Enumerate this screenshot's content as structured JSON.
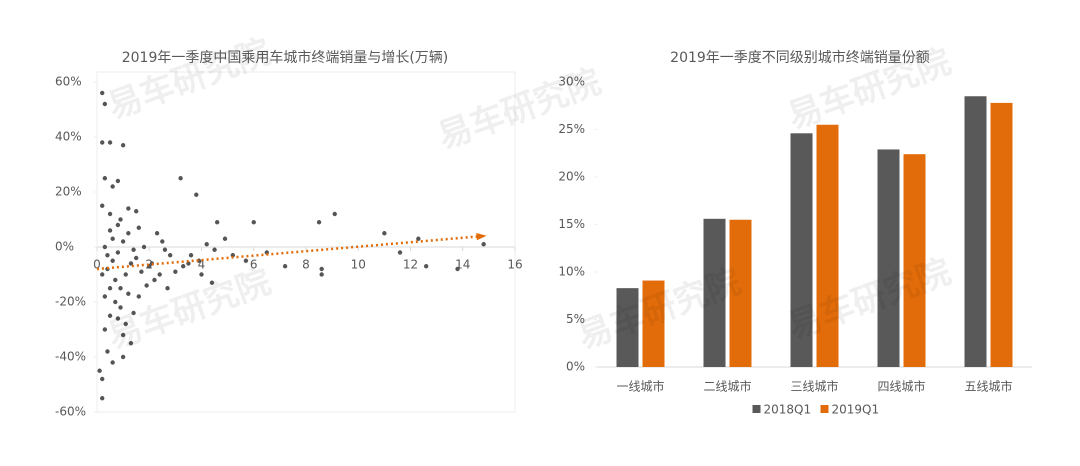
{
  "watermark": "易车研究院",
  "chart_data": [
    {
      "type": "scatter",
      "title": "2019年一季度中国乘用车城市终端销量与增长(万辆)",
      "color": "#555555",
      "x": [
        0.2,
        0.3,
        0.2,
        0.5,
        1.0,
        0.3,
        0.6,
        0.8,
        0.2,
        0.5,
        1.2,
        1.5,
        3.2,
        3.8,
        4.6,
        6.0,
        8.5,
        9.1,
        11.0,
        12.3,
        14.8,
        13.8,
        12.6,
        11.6,
        8.6,
        8.6,
        7.2,
        6.5,
        5.7,
        5.2,
        4.9,
        4.5,
        4.2,
        4.0,
        4.4,
        3.5,
        3.0,
        2.8,
        2.5,
        2.2,
        2.0,
        1.8,
        1.6,
        1.4,
        1.3,
        1.0,
        0.6,
        0.4,
        0.2,
        0.2,
        0.1,
        0.3,
        0.5,
        0.7,
        0.9,
        1.1,
        0.4,
        0.6,
        0.8,
        1.0,
        1.2,
        0.5,
        0.3,
        0.7,
        0.9,
        1.1,
        0.2,
        0.4,
        0.6,
        0.8,
        1.3,
        1.5,
        1.7,
        1.9,
        1.4,
        0.3,
        0.5,
        1.0,
        1.2,
        0.8,
        2.1,
        2.4,
        2.7,
        3.3,
        3.6,
        2.3,
        1.6,
        0.9,
        2.6,
        3.9
      ],
      "values": [
        56,
        52,
        38,
        38,
        37,
        25,
        22,
        24,
        15,
        12,
        14,
        13,
        25,
        19,
        9,
        9,
        9,
        12,
        5,
        3,
        1,
        -8,
        -7,
        -2,
        -8,
        -10,
        -7,
        -2,
        -5,
        -3,
        3,
        -1,
        1,
        -10,
        -13,
        -6,
        -9,
        -3,
        2,
        -12,
        -7,
        0,
        -18,
        -24,
        -35,
        -40,
        -42,
        -38,
        -48,
        -55,
        -45,
        -30,
        -25,
        -20,
        -15,
        -10,
        -8,
        -5,
        -2,
        2,
        5,
        6,
        -18,
        -12,
        -22,
        -28,
        -10,
        -3,
        3,
        8,
        -6,
        -4,
        -9,
        -14,
        -1,
        0,
        -15,
        -32,
        -17,
        -26,
        -6,
        -10,
        -15,
        -7,
        -3,
        5,
        7,
        10,
        -1,
        -5
      ],
      "trendline": {
        "x": [
          0,
          14.8
        ],
        "values": [
          -8,
          4
        ],
        "color": "#e36c0a"
      },
      "xlim": [
        0,
        16
      ],
      "xticks": [
        0,
        2,
        4,
        6,
        8,
        10,
        12,
        14,
        16
      ],
      "ylim": [
        -60,
        60
      ],
      "yticks": [
        {
          "value": -60,
          "label": "-60%"
        },
        {
          "value": -40,
          "label": "-40%"
        },
        {
          "value": -20,
          "label": "-20%"
        },
        {
          "value": 0,
          "label": "0%"
        },
        {
          "value": 20,
          "label": "20%"
        },
        {
          "value": 40,
          "label": "40%"
        },
        {
          "value": 60,
          "label": "60%"
        }
      ]
    },
    {
      "type": "bar",
      "title": "2019年一季度不同级别城市终端销量份额",
      "categories": [
        "一线城市",
        "二线城市",
        "三线城市",
        "四线城市",
        "五线城市"
      ],
      "series": [
        {
          "name": "2018Q1",
          "color": "#595959",
          "values": [
            8.3,
            15.6,
            24.6,
            22.9,
            28.5
          ]
        },
        {
          "name": "2019Q1",
          "color": "#e36c0a",
          "values": [
            9.1,
            15.5,
            25.5,
            22.4,
            27.8
          ]
        }
      ],
      "ylim": [
        0,
        30
      ],
      "yticks": [
        {
          "value": 0,
          "label": "0%"
        },
        {
          "value": 5,
          "label": "5%"
        },
        {
          "value": 10,
          "label": "10%"
        },
        {
          "value": 15,
          "label": "15%"
        },
        {
          "value": 20,
          "label": "20%"
        },
        {
          "value": 25,
          "label": "25%"
        },
        {
          "value": 30,
          "label": "30%"
        }
      ],
      "legend": "bottom"
    }
  ]
}
